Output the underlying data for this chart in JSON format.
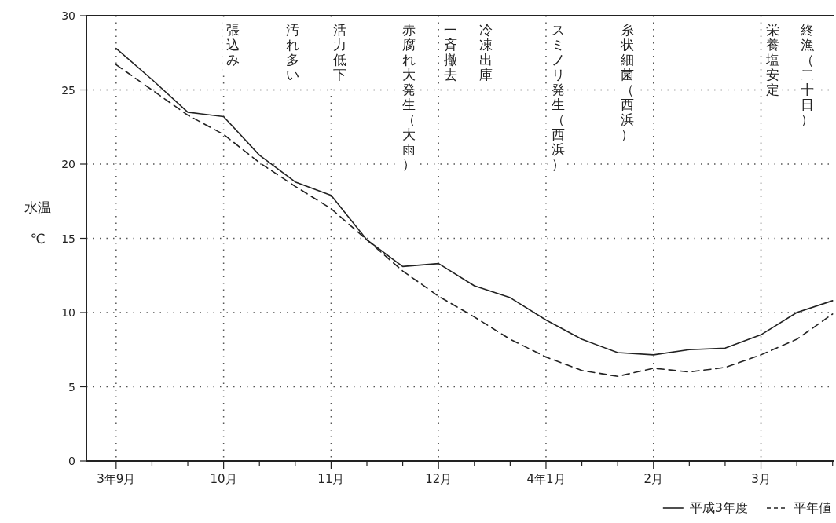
{
  "chart_data": {
    "type": "line",
    "ylabel": "水温 ℃",
    "ylim": [
      0,
      30
    ],
    "yticks": [
      0,
      5,
      10,
      15,
      20,
      25,
      30
    ],
    "categories": [
      "3年9月",
      null,
      null,
      "10月",
      null,
      null,
      "11月",
      null,
      null,
      "12月",
      null,
      null,
      "4年1月",
      null,
      null,
      "2月",
      null,
      null,
      "3月",
      null,
      null
    ],
    "series": [
      {
        "name": "平成3年度",
        "color": "#222222",
        "line_style": "solid",
        "values": [
          27.8,
          25.7,
          23.5,
          23.2,
          20.6,
          18.8,
          17.9,
          14.9,
          13.1,
          13.3,
          11.8,
          11.0,
          9.5,
          8.2,
          7.3,
          7.15,
          7.5,
          7.6,
          8.5,
          10.0,
          10.8
        ]
      },
      {
        "name": "平年値",
        "color": "#222222",
        "line_style": "dashed",
        "values": [
          26.7,
          25.0,
          23.3,
          22.0,
          20.1,
          18.5,
          17.0,
          14.9,
          12.8,
          11.1,
          9.7,
          8.2,
          7.0,
          6.1,
          5.7,
          6.25,
          6.0,
          6.3,
          7.15,
          8.2,
          9.9
        ]
      }
    ],
    "annotations": [
      "張込み",
      "汚れ多い",
      "活力低下",
      "赤腐れ大発生（大雨）",
      "一斉撤去",
      "冷凍出庫",
      "スミノリ発生（西浜）",
      "糸状細菌（西浜）",
      "栄養塩安定",
      "終漁（二十日）"
    ],
    "grid": true,
    "legend": "bottom right",
    "marker": "none"
  }
}
